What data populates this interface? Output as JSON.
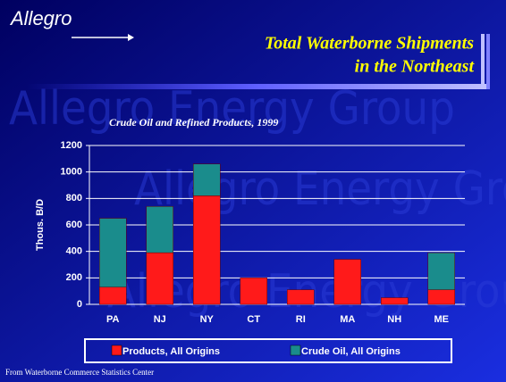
{
  "logo": "Allegro",
  "watermark": "Allegro Energy Group",
  "chart_data": {
    "type": "stacked_bar",
    "title": [
      "Total Waterborne Shipments",
      "in the Northeast"
    ],
    "subtitle": "Crude Oil and Refined Products, 1999",
    "y_label": "Thous. B/D",
    "categories": [
      "PA",
      "NJ",
      "NY",
      "CT",
      "RI",
      "MA",
      "NH",
      "ME"
    ],
    "series": [
      {
        "name": "Products, All Origins",
        "color": "#ff1a1a",
        "values": [
          130,
          390,
          820,
          200,
          110,
          340,
          50,
          110
        ]
      },
      {
        "name": "Crude Oil, All Origins",
        "color": "#1a8c8c",
        "values": [
          520,
          350,
          240,
          0,
          0,
          0,
          0,
          280
        ]
      }
    ],
    "ylim": [
      0,
      1200
    ],
    "yticks": [
      0,
      200,
      400,
      600,
      800,
      1000,
      1200
    ],
    "grid": true,
    "legend": "bottom"
  },
  "source": "From Waterborne Commerce Statistics Center"
}
